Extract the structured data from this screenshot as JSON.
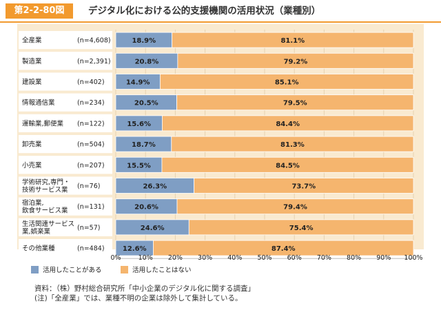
{
  "header": {
    "figure_label": "第2-2-80図",
    "title": "デジタル化における公的支援機関の活用状況（業種別）"
  },
  "colors": {
    "accent": "#f29a2e",
    "used": "#7f9ec4",
    "not_used": "#f5b56e"
  },
  "chart_data": {
    "type": "bar",
    "orientation": "horizontal",
    "stacked": true,
    "percent": true,
    "categories": [
      {
        "name": "全産業",
        "n": "(n=4,608)"
      },
      {
        "name": "製造業",
        "n": "(n=2,391)"
      },
      {
        "name": "建設業",
        "n": "(n=402)"
      },
      {
        "name": "情報通信業",
        "n": "(n=234)"
      },
      {
        "name": "運輸業,郵便業",
        "n": "(n=122)"
      },
      {
        "name": "卸売業",
        "n": "(n=504)"
      },
      {
        "name": "小売業",
        "n": "(n=207)"
      },
      {
        "name": "学術研究,専門・\n技術サービス業",
        "n": "(n=76)"
      },
      {
        "name": "宿泊業,\n飲食サービス業",
        "n": "(n=131)"
      },
      {
        "name": "生活関連サービス\n業,娯楽業",
        "n": "(n=57)"
      },
      {
        "name": "その他業種",
        "n": "(n=484)"
      }
    ],
    "series": [
      {
        "name": "活用したことがある",
        "color": "#7f9ec4",
        "values": [
          18.9,
          20.8,
          14.9,
          20.5,
          15.6,
          18.7,
          15.5,
          26.3,
          20.6,
          24.6,
          12.6
        ]
      },
      {
        "name": "活用したことはない",
        "color": "#f5b56e",
        "values": [
          81.1,
          79.2,
          85.1,
          79.5,
          84.4,
          81.3,
          84.5,
          73.7,
          79.4,
          75.4,
          87.4
        ]
      }
    ],
    "xlim": [
      0,
      100
    ],
    "xticks": [
      "0%",
      "10%",
      "20%",
      "30%",
      "40%",
      "50%",
      "60%",
      "70%",
      "80%",
      "90%",
      "100%"
    ],
    "legend_position": "bottom-left"
  },
  "footer": {
    "source": "資料：（株）野村総合研究所「中小企業のデジタル化に関する調査」",
    "note": "(注)「全産業」では、業種不明の企業は除外して集計している。"
  }
}
